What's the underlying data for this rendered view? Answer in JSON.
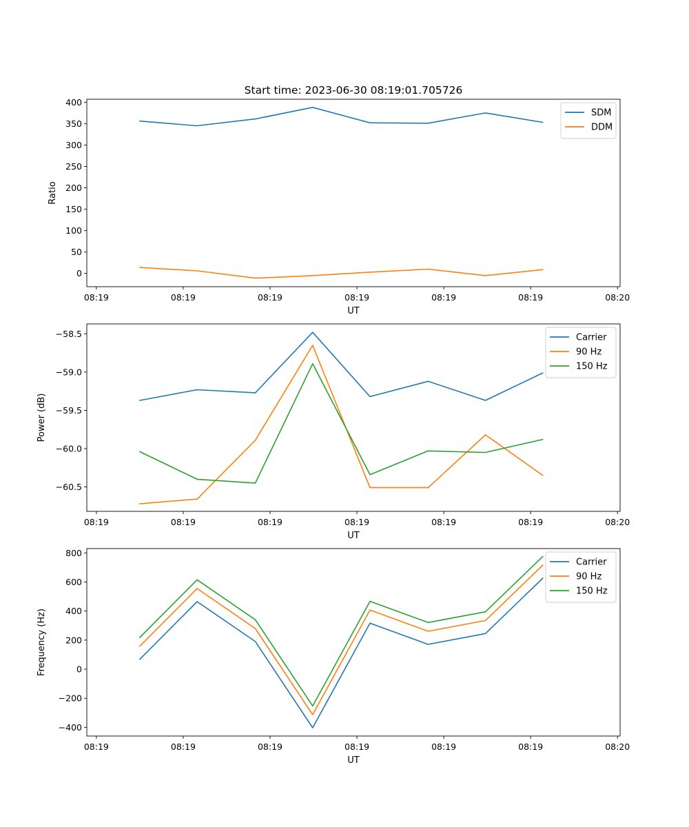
{
  "figure": {
    "title": "Start time: 2023-06-30 08:19:01.705726"
  },
  "colors": {
    "blue": "#1f77b4",
    "orange": "#ff7f0e",
    "green": "#2ca02c"
  },
  "chart_data": [
    {
      "type": "line",
      "title": "Start time: 2023-06-30 08:19:01.705726",
      "xlabel": "UT",
      "ylabel": "Ratio",
      "x": [
        0.5,
        1.16,
        1.83,
        2.49,
        3.15,
        3.82,
        4.48,
        5.14
      ],
      "xlim": [
        -0.11,
        6.03
      ],
      "xticks": [
        0,
        1,
        2,
        3,
        4,
        5,
        6
      ],
      "xtick_labels": [
        "08:19",
        "08:19",
        "08:19",
        "08:19",
        "08:19",
        "08:19",
        "08:20"
      ],
      "ylim": [
        -31,
        407
      ],
      "yticks": [
        0,
        50,
        100,
        150,
        200,
        250,
        300,
        350,
        400
      ],
      "ytick_labels": [
        "0",
        "50",
        "100",
        "150",
        "200",
        "250",
        "300",
        "350",
        "400"
      ],
      "legend": "top-right",
      "grid": false,
      "series": [
        {
          "name": "SDM",
          "color": "#1f77b4",
          "values": [
            356,
            345,
            361,
            388,
            352,
            351,
            375,
            353
          ]
        },
        {
          "name": "DDM",
          "color": "#ff7f0e",
          "values": [
            14,
            6,
            -11,
            -5,
            3,
            10,
            -5,
            9
          ]
        }
      ]
    },
    {
      "type": "line",
      "xlabel": "UT",
      "ylabel": "Power (dB)",
      "x": [
        0.5,
        1.16,
        1.83,
        2.49,
        3.15,
        3.82,
        4.48,
        5.14
      ],
      "xlim": [
        -0.11,
        6.03
      ],
      "xticks": [
        0,
        1,
        2,
        3,
        4,
        5,
        6
      ],
      "xtick_labels": [
        "08:19",
        "08:19",
        "08:19",
        "08:19",
        "08:19",
        "08:19",
        "08:20"
      ],
      "ylim": [
        -60.82,
        -58.37
      ],
      "yticks": [
        -60.5,
        -60.0,
        -59.5,
        -59.0,
        -58.5
      ],
      "ytick_labels": [
        "−60.5",
        "−60.0",
        "−59.5",
        "−59.0",
        "−58.5"
      ],
      "legend": "top-right",
      "grid": false,
      "series": [
        {
          "name": "Carrier",
          "color": "#1f77b4",
          "values": [
            -59.37,
            -59.23,
            -59.27,
            -58.48,
            -59.32,
            -59.12,
            -59.37,
            -59.01
          ]
        },
        {
          "name": "90 Hz",
          "color": "#ff7f0e",
          "values": [
            -60.72,
            -60.66,
            -59.89,
            -58.65,
            -60.51,
            -60.51,
            -59.82,
            -60.35
          ]
        },
        {
          "name": "150 Hz",
          "color": "#2ca02c",
          "values": [
            -60.04,
            -60.4,
            -60.45,
            -58.89,
            -60.34,
            -60.03,
            -60.05,
            -59.88
          ]
        }
      ]
    },
    {
      "type": "line",
      "xlabel": "UT",
      "ylabel": "Frequency (Hz)",
      "x": [
        0.5,
        1.16,
        1.83,
        2.49,
        3.15,
        3.82,
        4.48,
        5.14
      ],
      "xlim": [
        -0.11,
        6.03
      ],
      "xticks": [
        0,
        1,
        2,
        3,
        4,
        5,
        6
      ],
      "xtick_labels": [
        "08:19",
        "08:19",
        "08:19",
        "08:19",
        "08:19",
        "08:19",
        "08:20"
      ],
      "ylim": [
        -460,
        830
      ],
      "yticks": [
        -400,
        -200,
        0,
        200,
        400,
        600,
        800
      ],
      "ytick_labels": [
        "−400",
        "−200",
        "0",
        "200",
        "400",
        "600",
        "800"
      ],
      "legend": "top-right",
      "grid": false,
      "series": [
        {
          "name": "Carrier",
          "color": "#1f77b4",
          "values": [
            68,
            465,
            190,
            -403,
            317,
            171,
            245,
            626
          ]
        },
        {
          "name": "90 Hz",
          "color": "#ff7f0e",
          "values": [
            158,
            555,
            280,
            -313,
            407,
            261,
            335,
            716
          ]
        },
        {
          "name": "150 Hz",
          "color": "#2ca02c",
          "values": [
            218,
            615,
            340,
            -253,
            467,
            321,
            395,
            776
          ]
        }
      ]
    }
  ]
}
